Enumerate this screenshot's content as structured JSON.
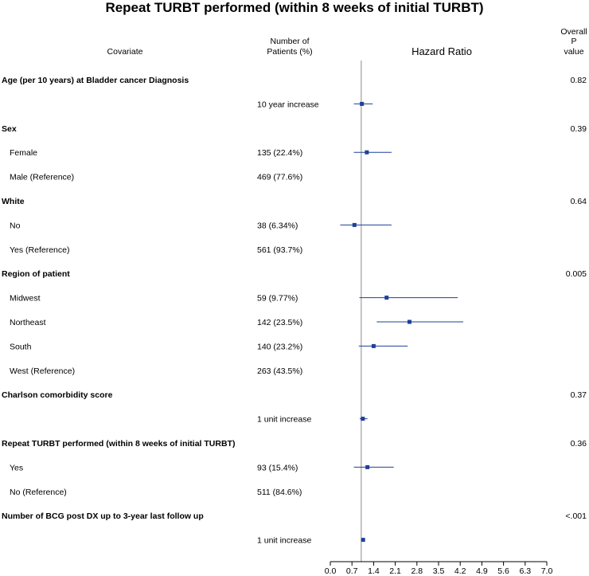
{
  "chart_data": {
    "type": "forest",
    "title": "Repeat TURBT performed (within 8 weeks of initial TURBT)",
    "headers": {
      "covariate": "Covariate",
      "patients_line1": "Number of",
      "patients_line2": "Patients (%)",
      "effect": "Hazard Ratio",
      "pvalue_line1": "Overall",
      "pvalue_line2": "P",
      "pvalue_line3": "value"
    },
    "x_ticks": [
      "0.0",
      "0.7",
      "1.4",
      "2.1",
      "2.8",
      "3.5",
      "4.2",
      "4.9",
      "5.6",
      "6.3",
      "7.0"
    ],
    "xlim": [
      0,
      7
    ],
    "reference_line": 1,
    "rows": [
      {
        "label": "Age (per 10 years) at Bladder cancer Diagnosis",
        "header": true,
        "p": "0.82"
      },
      {
        "label": "",
        "n": "10 year increase",
        "hr": 1.02,
        "lo": 0.76,
        "hi": 1.37
      },
      {
        "label": "Sex",
        "header": true,
        "p": "0.39"
      },
      {
        "label": "Female",
        "n": "135 (22.4%)",
        "hr": 1.18,
        "lo": 0.76,
        "hi": 1.98
      },
      {
        "label": "Male (Reference)",
        "n": "469 (77.6%)"
      },
      {
        "label": "White",
        "header": true,
        "p": "0.64"
      },
      {
        "label": "No",
        "n": "38 (6.34%)",
        "hr": 0.78,
        "lo": 0.32,
        "hi": 1.98
      },
      {
        "label": "Yes (Reference)",
        "n": "561 (93.7%)"
      },
      {
        "label": "Region of patient",
        "header": true,
        "p": "0.005"
      },
      {
        "label": "Midwest",
        "n": "59 (9.77%)",
        "hr": 1.82,
        "lo": 0.94,
        "hi": 4.12
      },
      {
        "label": "Northeast",
        "n": "142 (23.5%)",
        "hr": 2.56,
        "lo": 1.5,
        "hi": 4.3
      },
      {
        "label": "South",
        "n": "140 (23.2%)",
        "hr": 1.4,
        "lo": 0.92,
        "hi": 2.5
      },
      {
        "label": "West (Reference)",
        "n": "263 (43.5%)"
      },
      {
        "label": "Charlson comorbidity score",
        "header": true,
        "p": "0.37"
      },
      {
        "label": "",
        "n": "1 unit increase",
        "hr": 1.05,
        "lo": 0.95,
        "hi": 1.2
      },
      {
        "label": "Repeat TURBT performed (within 8 weeks of initial TURBT)",
        "header": true,
        "p": "0.36"
      },
      {
        "label": "Yes",
        "n": "93 (15.4%)",
        "hr": 1.2,
        "lo": 0.76,
        "hi": 2.05
      },
      {
        "label": "No (Reference)",
        "n": "511 (84.6%)"
      },
      {
        "label": "Number of BCG post DX up to 3-year last follow up",
        "header": true,
        "p": "<.001"
      },
      {
        "label": "",
        "n": "1 unit increase",
        "hr": 1.06,
        "lo": 1.04,
        "hi": 1.09
      }
    ],
    "colors": {
      "marker": "#1f3f9a",
      "ci_line": "#1f3f9a",
      "ref_line": "#8c8c8c",
      "axis": "#000000"
    }
  }
}
